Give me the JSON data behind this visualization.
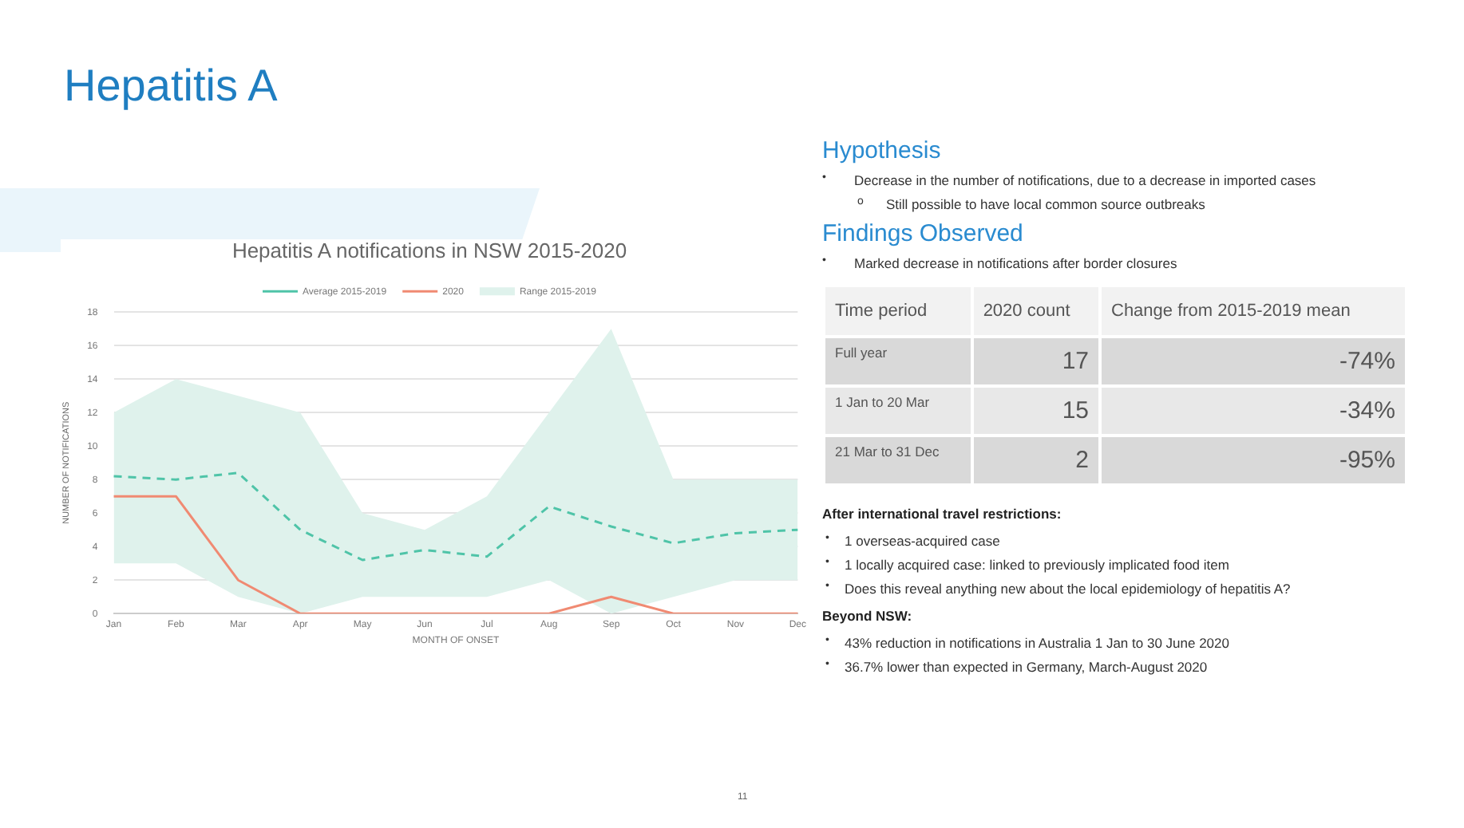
{
  "chart_data": [
    {
      "type": "other",
      "title": "Hepatitis A"
    },
    {
      "type": "line",
      "title": "Hepatitis A notifications in NSW 2015-2020",
      "xlabel": "MONTH OF ONSET",
      "ylabel": "NUMBER OF NOTIFICATIONS",
      "categories": [
        "Jan",
        "Feb",
        "Mar",
        "Apr",
        "May",
        "Jun",
        "Jul",
        "Aug",
        "Sep",
        "Oct",
        "Nov",
        "Dec"
      ],
      "ylim": [
        0,
        18
      ],
      "yticks": [
        0,
        2,
        4,
        6,
        8,
        10,
        12,
        14,
        16,
        18
      ],
      "grid": "y",
      "legend": "top",
      "marker": "none",
      "series": [
        {
          "name": "Range 2015-2019",
          "type": "line",
          "color": "#dff2ec",
          "values": [
            null,
            null,
            null,
            null,
            null,
            null,
            null,
            null,
            null,
            null,
            null,
            null
          ],
          "lower": [
            3,
            3,
            1,
            0,
            1,
            1,
            1,
            2,
            0,
            1,
            2,
            2
          ],
          "upper": [
            12,
            14,
            13,
            12,
            6,
            5,
            7,
            12,
            17,
            8,
            8,
            8
          ]
        },
        {
          "name": "Average 2015-2019",
          "type": "line",
          "color": "#4fc4a8",
          "line_style": "dashed",
          "values": [
            8.2,
            8,
            8.4,
            5,
            3.2,
            3.8,
            3.4,
            6.4,
            5.2,
            4.2,
            4.8,
            5
          ]
        },
        {
          "name": "2020",
          "type": "line",
          "color": "#f08a72",
          "line_style": "solid",
          "values": [
            7,
            7,
            2,
            0,
            0,
            0,
            0,
            0,
            1,
            0,
            0,
            0
          ]
        }
      ]
    },
    {
      "type": "other",
      "xlabel": "Time period",
      "categories": [
        "Full year",
        "1 Jan to 20 Mar",
        "21 Mar to 31 Dec"
      ],
      "data_labels": true,
      "series": [
        {
          "name": "2020 count",
          "colors": [
            "#d9d9d9",
            "#e8e8e8",
            "#d9d9d9"
          ],
          "values": [
            17,
            15,
            2
          ]
        },
        {
          "name": "Change from 2015-2019 mean",
          "colors": [
            "#d9d9d9",
            "#e8e8e8",
            "#d9d9d9"
          ],
          "values": [
            -74,
            -34,
            -95
          ],
          "value_labels": [
            "-74%",
            "-34%",
            "-95%"
          ]
        }
      ],
      "annotations": [
        "Hypothesis",
        "•",
        "Decrease in the number of notifications, due to a decrease in imported cases",
        "o",
        "Still possible to have local common source outbreaks",
        "Findings Observed",
        "•",
        "Marked decrease in notifications after border closures",
        "After international travel restrictions:",
        "•",
        "1 overseas-acquired case",
        "•",
        "1 locally acquired case: linked to previously implicated food item",
        "•",
        "Does this reveal anything new about the local epidemiology of hepatitis A?",
        "Beyond NSW:",
        "•",
        "43% reduction in notifications in Australia 1 Jan to 30 June 2020",
        "•",
        "36.7% lower than expected in Germany, March-August 2020",
        "11"
      ]
    }
  ]
}
